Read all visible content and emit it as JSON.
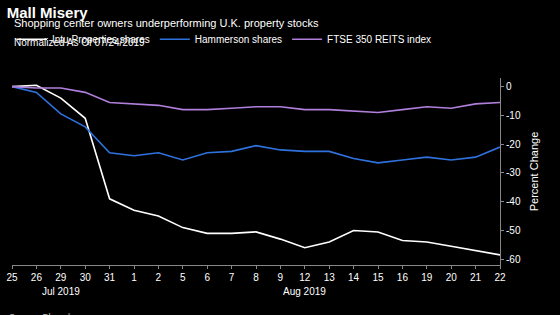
{
  "chart_data": {
    "type": "line",
    "title": "Mall Misery",
    "subtitle": "Shopping center owners underperforming U.K. property stocks",
    "note": "Normalized As Of 07/24/2019",
    "source": "Source: Bloomberg",
    "y_label": "Percent Change",
    "categories": [
      "25",
      "26",
      "29",
      "30",
      "31",
      "1",
      "2",
      "5",
      "6",
      "7",
      "8",
      "9",
      "12",
      "13",
      "14",
      "15",
      "16",
      "19",
      "20",
      "21",
      "22"
    ],
    "annotations": [
      {
        "text": "Jul 2019",
        "x": 2
      },
      {
        "text": "Aug 2019",
        "x": 12
      }
    ],
    "series": [
      {
        "name": "Intu Properties shares",
        "color": "#ffffff",
        "values": [
          0,
          0.5,
          -4,
          -11,
          -39,
          -43,
          -45,
          -49,
          -51,
          -51,
          -50.5,
          -53,
          -56,
          -54,
          -50,
          -50.5,
          -53.5,
          -54,
          -55.5,
          -57,
          -58.5
        ]
      },
      {
        "name": "Hammerson shares",
        "color": "#2f72de",
        "values": [
          0,
          -2,
          -9.5,
          -14,
          -23,
          -24,
          -23,
          -25.5,
          -23,
          -22.5,
          -20.5,
          -22,
          -22.5,
          -22.5,
          -25,
          -26.5,
          -25.5,
          -24.5,
          -25.5,
          -24.5,
          -21
        ]
      },
      {
        "name": "FTSE 350 REITS index",
        "color": "#b07fdc",
        "values": [
          0,
          -0.5,
          -0.5,
          -2,
          -5.5,
          -6,
          -6.5,
          -8,
          -8,
          -7.5,
          -7,
          -7,
          -8,
          -8,
          -8.5,
          -9,
          -8,
          -7,
          -7.5,
          -6,
          -5.5
        ]
      }
    ],
    "ylim": [
      -62,
      3
    ],
    "yticks": [
      0,
      -10,
      -20,
      -30,
      -40,
      -50,
      -60
    ],
    "grid": false,
    "legend": "top-left"
  }
}
